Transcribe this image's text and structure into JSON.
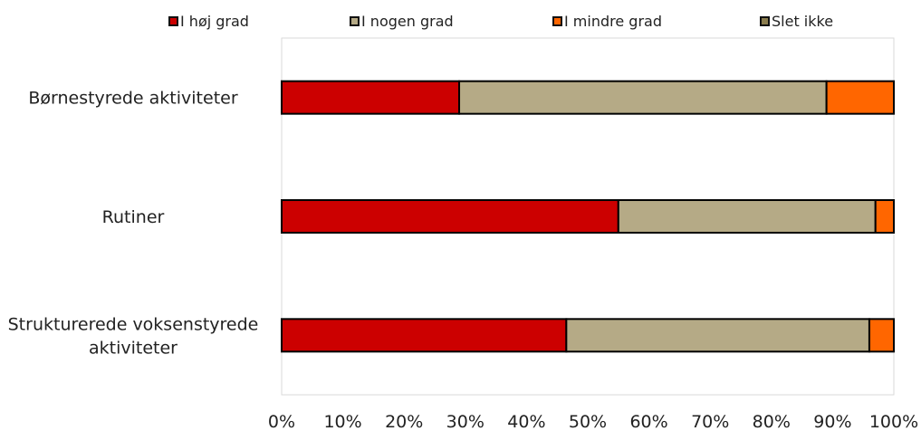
{
  "chart_data": {
    "type": "bar",
    "orientation": "horizontal",
    "stacked": true,
    "categories": [
      "Børnestyrede aktiviteter",
      "Rutiner",
      "Strukturerede voksenstyrede aktiviteter"
    ],
    "category_lines": [
      [
        "Børnestyrede aktiviteter"
      ],
      [
        "Rutiner"
      ],
      [
        "Strukturerede voksenstyrede",
        "aktiviteter"
      ]
    ],
    "series": [
      {
        "name": "I høj grad",
        "color": "#cc0000",
        "values": [
          29,
          55,
          46.5
        ]
      },
      {
        "name": "I nogen grad",
        "color": "#b5aa86",
        "values": [
          60,
          42,
          49.5
        ]
      },
      {
        "name": "I mindre grad",
        "color": "#ff6600",
        "values": [
          11,
          3,
          4
        ]
      },
      {
        "name": "Slet ikke",
        "color": "#8b7d4e",
        "values": [
          0,
          0,
          0
        ]
      }
    ],
    "xlim": [
      0,
      100
    ],
    "xticks": [
      "0%",
      "10%",
      "20%",
      "30%",
      "40%",
      "50%",
      "60%",
      "70%",
      "80%",
      "90%",
      "100%"
    ],
    "legend_position": "top",
    "grid": false
  }
}
